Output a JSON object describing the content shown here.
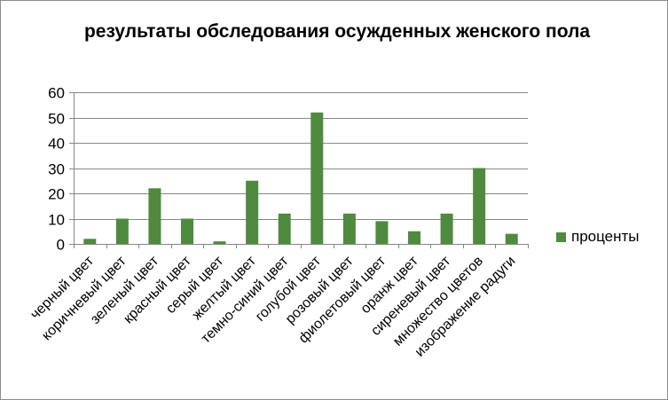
{
  "chart_data": {
    "type": "bar",
    "title": "результаты обследования осужденных женского пола",
    "xlabel": "",
    "ylabel": "",
    "ylim": [
      0,
      60
    ],
    "yticks": [
      0,
      10,
      20,
      30,
      40,
      50,
      60
    ],
    "grid": true,
    "legend": "right",
    "categories": [
      "черный цвет",
      "коричневый цвет",
      "зеленый цвет",
      "красный цвет",
      "серый цвет",
      "желтый цвет",
      "темно-синий цвет",
      "голубой цвет",
      "розовый цвет",
      "фиолетовый цвет",
      "оранж цвет",
      "сиреневый цвет",
      "множество цветов",
      "изображение радуги"
    ],
    "series": [
      {
        "name": "проценты",
        "color": "#4f8a3e",
        "values": [
          2,
          10,
          22,
          10,
          1,
          25,
          12,
          52,
          12,
          9,
          5,
          12,
          30,
          4
        ]
      }
    ]
  }
}
